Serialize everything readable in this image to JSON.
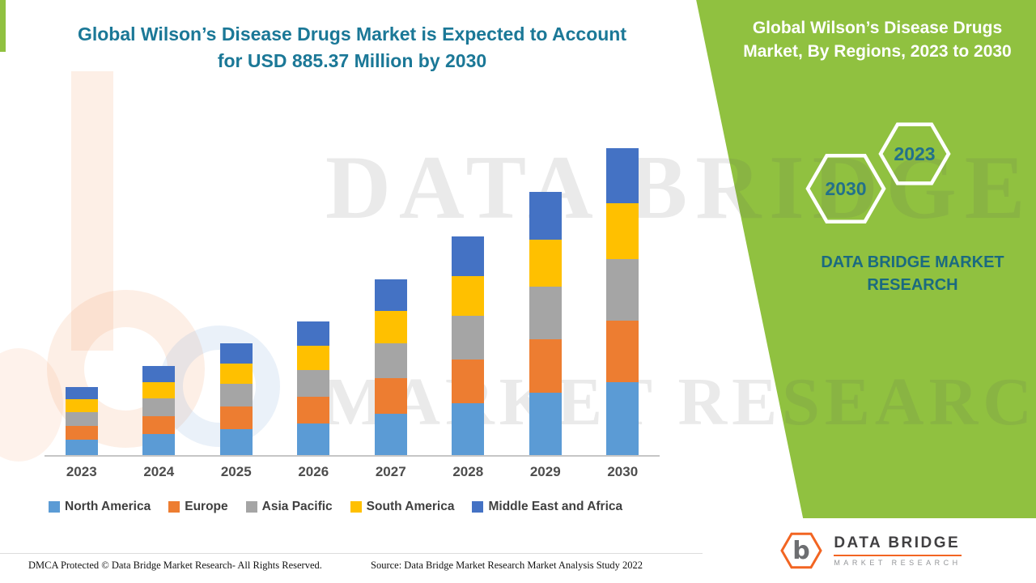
{
  "page": {
    "title_line1": "Global Wilson’s Disease Drugs Market is Expected to Account",
    "title_line2": "for USD 885.37 Million by 2030",
    "footer_left": "DMCA Protected © Data Bridge Market Research- All Rights Reserved.",
    "footer_source": "Source: Data Bridge Market Research Market Analysis Study 2022"
  },
  "side_panel": {
    "title_line1": "Global Wilson’s Disease Drugs",
    "title_line2": "Market, By Regions, 2023 to 2030",
    "hex_year_front": "2023",
    "hex_year_back": "2030",
    "brand_line1": "DATA BRIDGE MARKET",
    "brand_line2": "RESEARCH"
  },
  "watermark": {
    "line1": "DATA BRIDGE",
    "line2": "MARKET RESEARCH"
  },
  "logo": {
    "letter": "b",
    "name_line1": "DATA BRIDGE",
    "name_line2": "MARKET RESEARCH"
  },
  "colors": {
    "panel_green": "#90c140",
    "title_teal": "#1b7897",
    "brand_orange": "#f26522"
  },
  "chart_data": {
    "type": "bar",
    "stacked": true,
    "title": "Global Wilson’s Disease Drugs Market is Expected to Account for USD 885.37 Million by 2030",
    "xlabel": "",
    "ylabel": "",
    "unit": "USD Million",
    "grid": false,
    "y_axis_visible": false,
    "legend_position": "bottom",
    "ylim": [
      0,
      900
    ],
    "categories": [
      "2023",
      "2024",
      "2025",
      "2026",
      "2027",
      "2028",
      "2029",
      "2030"
    ],
    "series": [
      {
        "name": "North America",
        "color": "#5b9bd5",
        "values": [
          47.5,
          62.2,
          77.8,
          92.9,
          121.9,
          151.4,
          182.4,
          212.5
        ]
      },
      {
        "name": "Europe",
        "color": "#ed7d31",
        "values": [
          39.6,
          51.8,
          64.8,
          77.4,
          101.6,
          126.2,
          152.0,
          177.1
        ]
      },
      {
        "name": "Asia Pacific",
        "color": "#a5a5a5",
        "values": [
          39.6,
          51.8,
          64.8,
          77.4,
          101.6,
          126.2,
          152.0,
          177.1
        ]
      },
      {
        "name": "South America",
        "color": "#ffc000",
        "values": [
          35.6,
          46.6,
          58.3,
          69.7,
          91.4,
          113.6,
          136.8,
          159.4
        ]
      },
      {
        "name": "Middle East and Africa",
        "color": "#4472c4",
        "values": [
          35.7,
          46.6,
          58.3,
          69.6,
          91.5,
          113.6,
          136.8,
          159.27
        ]
      }
    ],
    "totals": [
      198.0,
      259.0,
      324.0,
      387.0,
      508.0,
      631.0,
      760.0,
      885.37
    ]
  }
}
